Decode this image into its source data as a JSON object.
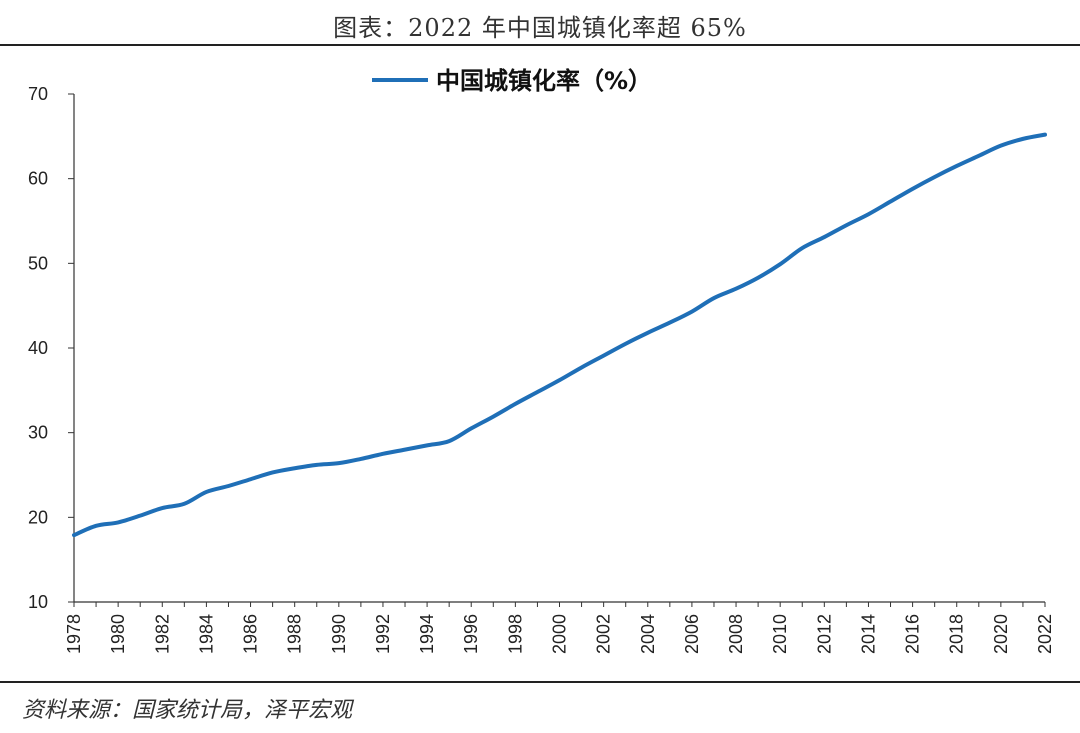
{
  "header": {
    "title": "图表：2022 年中国城镇化率超 65%"
  },
  "footer": {
    "source": "资料来源：国家统计局，泽平宏观"
  },
  "chart_data": {
    "type": "line",
    "legend_position": "top-center",
    "grid": false,
    "ylim": [
      10,
      70
    ],
    "yticks": [
      10,
      20,
      30,
      40,
      50,
      60,
      70
    ],
    "xlim": [
      1978,
      2022
    ],
    "xticks": [
      "1978",
      "1980",
      "1982",
      "1984",
      "1986",
      "1988",
      "1990",
      "1992",
      "1994",
      "1996",
      "1998",
      "2000",
      "2002",
      "2004",
      "2006",
      "2008",
      "2010",
      "2012",
      "2014",
      "2016",
      "2018",
      "2020",
      "2022"
    ],
    "series": [
      {
        "name": "中国城镇化率（%）",
        "color": "#1f6fb7",
        "x": [
          1978,
          1979,
          1980,
          1981,
          1982,
          1983,
          1984,
          1985,
          1986,
          1987,
          1988,
          1989,
          1990,
          1991,
          1992,
          1993,
          1994,
          1995,
          1996,
          1997,
          1998,
          1999,
          2000,
          2001,
          2002,
          2003,
          2004,
          2005,
          2006,
          2007,
          2008,
          2009,
          2010,
          2011,
          2012,
          2013,
          2014,
          2015,
          2016,
          2017,
          2018,
          2019,
          2020,
          2021,
          2022
        ],
        "values": [
          17.9,
          19.0,
          19.4,
          20.2,
          21.1,
          21.6,
          23.0,
          23.7,
          24.5,
          25.3,
          25.8,
          26.2,
          26.4,
          26.9,
          27.5,
          28.0,
          28.5,
          29.0,
          30.5,
          31.9,
          33.4,
          34.8,
          36.2,
          37.7,
          39.1,
          40.5,
          41.8,
          43.0,
          44.3,
          45.9,
          47.0,
          48.3,
          49.9,
          51.8,
          53.1,
          54.5,
          55.8,
          57.3,
          58.8,
          60.2,
          61.5,
          62.7,
          63.9,
          64.7,
          65.2
        ]
      }
    ]
  }
}
